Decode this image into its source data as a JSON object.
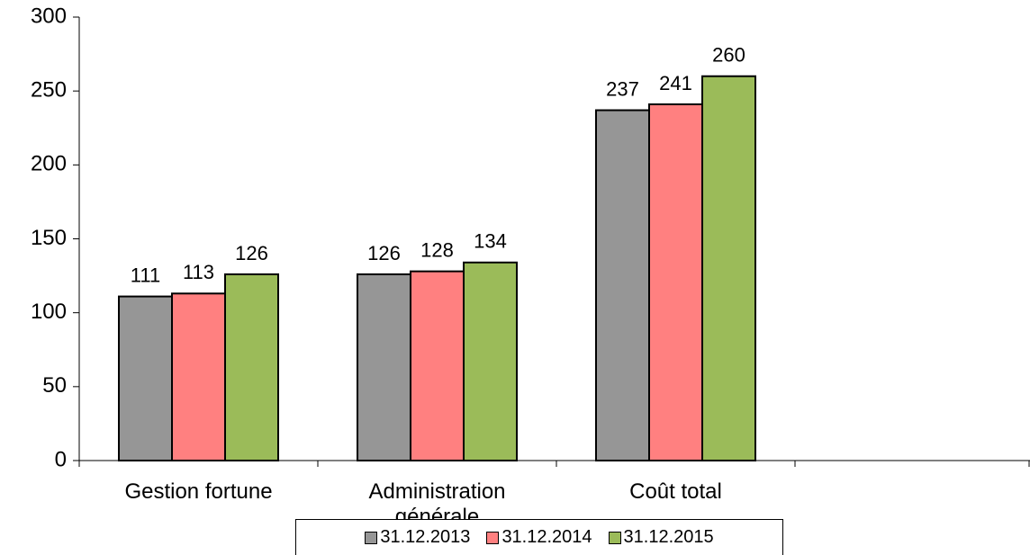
{
  "chart_data": {
    "type": "bar",
    "categories": [
      "Gestion fortune",
      "Administration générale",
      "Coût total",
      null
    ],
    "series": [
      {
        "name": "31.12.2013",
        "color": "#969696",
        "values": [
          111,
          126,
          237,
          null
        ]
      },
      {
        "name": "31.12.2014",
        "color": "#ff8080",
        "values": [
          113,
          128,
          241,
          null
        ]
      },
      {
        "name": "31.12.2015",
        "color": "#9bbb59",
        "values": [
          126,
          134,
          260,
          null
        ]
      }
    ],
    "ylim": [
      0,
      300
    ],
    "yticks": [
      0,
      50,
      100,
      150,
      200,
      250,
      300
    ],
    "grid": false,
    "legend": "bottom"
  }
}
